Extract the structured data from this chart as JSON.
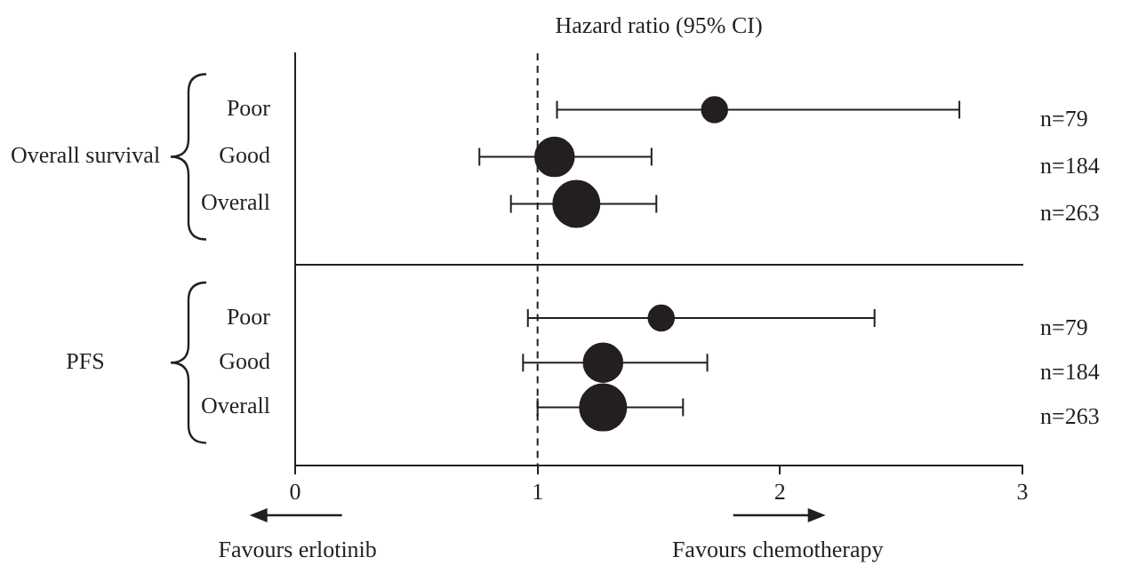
{
  "chart_data": [
    {
      "type": "bubble",
      "title": "Hazard ratio (95% CI)",
      "orientation": "horizontal",
      "categories": [
        "Poor",
        "Good",
        "Overall"
      ],
      "series": [
        {
          "name": "Overall survival",
          "color": "#231f20",
          "values": [
            1.73,
            1.07,
            1.16
          ],
          "errors": [
            [
              1.08,
              2.74
            ],
            [
              0.76,
              1.47
            ],
            [
              0.89,
              1.49
            ]
          ],
          "sizes": [
            0.3,
            0.7,
            1
          ]
        }
      ],
      "xlim": [
        0,
        3
      ],
      "xticks": [
        0,
        1,
        2,
        3
      ],
      "tick_labels": "y",
      "ref_lines": [
        {
          "axis": "x",
          "value": 1,
          "line_style": "dashed"
        }
      ],
      "annotations": [
        "n=79",
        "n=184",
        "n=263"
      ]
    },
    {
      "type": "bubble",
      "orientation": "horizontal",
      "categories": [
        "Poor",
        "Good",
        "Overall"
      ],
      "series": [
        {
          "name": "PFS",
          "color": "#231f20",
          "values": [
            1.51,
            1.27,
            1.27
          ],
          "errors": [
            [
              0.96,
              2.39
            ],
            [
              0.94,
              1.7
            ],
            [
              1.0,
              1.6
            ]
          ],
          "sizes": [
            0.3,
            0.7,
            1
          ]
        }
      ],
      "xlim": [
        0,
        3
      ],
      "xticks": [
        0,
        1,
        2,
        3
      ],
      "ref_lines": [
        {
          "axis": "x",
          "value": 1,
          "line_style": "dashed"
        }
      ],
      "annotations": [
        "n=79",
        "n=184",
        "n=263",
        "Favours erlotinib",
        "Favours chemotherapy"
      ]
    }
  ]
}
